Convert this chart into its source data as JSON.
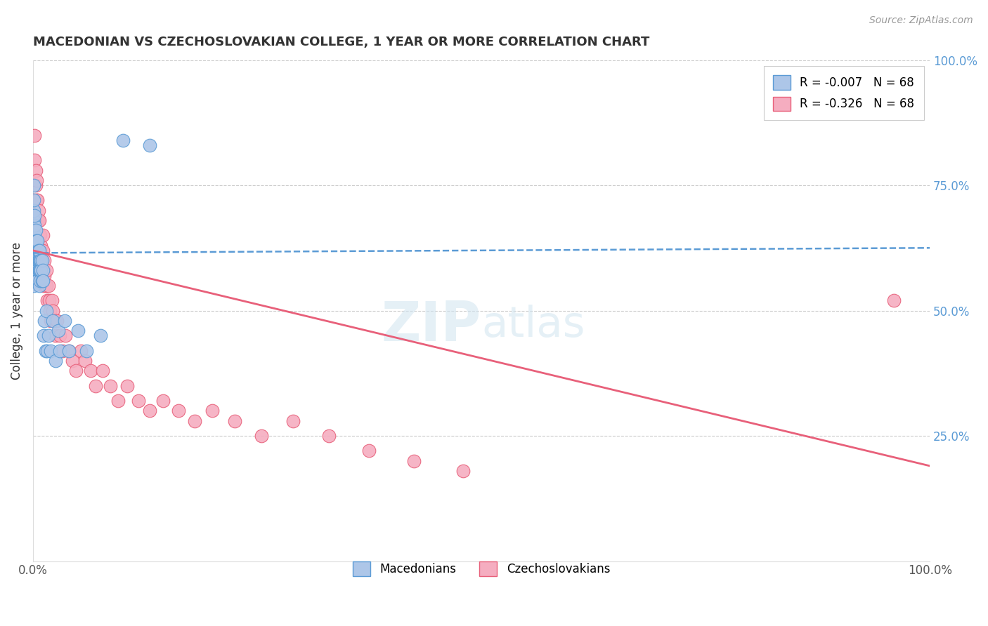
{
  "title": "MACEDONIAN VS CZECHOSLOVAKIAN COLLEGE, 1 YEAR OR MORE CORRELATION CHART",
  "source_text": "Source: ZipAtlas.com",
  "ylabel": "College, 1 year or more",
  "legend_label_1": "R = -0.007   N = 68",
  "legend_label_2": "R = -0.326   N = 68",
  "legend_bottom_1": "Macedonians",
  "legend_bottom_2": "Czechoslovakians",
  "blue_color": "#adc6e8",
  "pink_color": "#f5adc0",
  "blue_line_color": "#5b9bd5",
  "pink_line_color": "#e8607a",
  "grid_color": "#cccccc",
  "background_color": "#ffffff",
  "xlim": [
    0.0,
    1.0
  ],
  "ylim": [
    0.0,
    1.0
  ],
  "macedonian_x": [
    0.001,
    0.001,
    0.001,
    0.001,
    0.001,
    0.001,
    0.001,
    0.001,
    0.001,
    0.001,
    0.001,
    0.002,
    0.002,
    0.002,
    0.002,
    0.002,
    0.002,
    0.002,
    0.003,
    0.003,
    0.003,
    0.003,
    0.003,
    0.003,
    0.004,
    0.004,
    0.004,
    0.004,
    0.004,
    0.005,
    0.005,
    0.005,
    0.005,
    0.005,
    0.006,
    0.006,
    0.006,
    0.007,
    0.007,
    0.007,
    0.007,
    0.008,
    0.008,
    0.008,
    0.009,
    0.009,
    0.01,
    0.01,
    0.011,
    0.011,
    0.012,
    0.013,
    0.014,
    0.015,
    0.016,
    0.017,
    0.02,
    0.022,
    0.025,
    0.028,
    0.03,
    0.035,
    0.04,
    0.05,
    0.06,
    0.075,
    0.1,
    0.13
  ],
  "macedonian_y": [
    0.6,
    0.62,
    0.58,
    0.55,
    0.65,
    0.68,
    0.7,
    0.72,
    0.75,
    0.63,
    0.61,
    0.58,
    0.6,
    0.62,
    0.65,
    0.67,
    0.64,
    0.69,
    0.58,
    0.6,
    0.62,
    0.64,
    0.57,
    0.66,
    0.58,
    0.6,
    0.62,
    0.64,
    0.59,
    0.6,
    0.62,
    0.58,
    0.56,
    0.64,
    0.58,
    0.6,
    0.62,
    0.6,
    0.58,
    0.55,
    0.62,
    0.6,
    0.58,
    0.56,
    0.6,
    0.58,
    0.56,
    0.6,
    0.58,
    0.56,
    0.45,
    0.48,
    0.42,
    0.5,
    0.42,
    0.45,
    0.42,
    0.48,
    0.4,
    0.46,
    0.42,
    0.48,
    0.42,
    0.46,
    0.42,
    0.45,
    0.84,
    0.83
  ],
  "czechoslovakian_x": [
    0.001,
    0.002,
    0.002,
    0.003,
    0.003,
    0.004,
    0.004,
    0.005,
    0.005,
    0.005,
    0.006,
    0.006,
    0.007,
    0.007,
    0.007,
    0.008,
    0.008,
    0.009,
    0.009,
    0.01,
    0.01,
    0.011,
    0.011,
    0.012,
    0.012,
    0.013,
    0.013,
    0.014,
    0.015,
    0.015,
    0.016,
    0.017,
    0.018,
    0.019,
    0.02,
    0.021,
    0.022,
    0.024,
    0.025,
    0.027,
    0.03,
    0.033,
    0.036,
    0.04,
    0.044,
    0.048,
    0.053,
    0.058,
    0.064,
    0.07,
    0.078,
    0.086,
    0.095,
    0.105,
    0.118,
    0.13,
    0.145,
    0.162,
    0.18,
    0.2,
    0.225,
    0.255,
    0.29,
    0.33,
    0.375,
    0.425,
    0.48,
    0.96
  ],
  "czechoslovakian_y": [
    0.72,
    0.8,
    0.85,
    0.75,
    0.78,
    0.72,
    0.76,
    0.68,
    0.72,
    0.65,
    0.68,
    0.7,
    0.65,
    0.62,
    0.68,
    0.62,
    0.65,
    0.6,
    0.63,
    0.6,
    0.58,
    0.62,
    0.65,
    0.58,
    0.55,
    0.6,
    0.57,
    0.55,
    0.58,
    0.55,
    0.52,
    0.55,
    0.52,
    0.5,
    0.48,
    0.52,
    0.5,
    0.48,
    0.45,
    0.48,
    0.45,
    0.42,
    0.45,
    0.42,
    0.4,
    0.38,
    0.42,
    0.4,
    0.38,
    0.35,
    0.38,
    0.35,
    0.32,
    0.35,
    0.32,
    0.3,
    0.32,
    0.3,
    0.28,
    0.3,
    0.28,
    0.25,
    0.28,
    0.25,
    0.22,
    0.2,
    0.18,
    0.52
  ],
  "blue_line_x0": 0.0,
  "blue_line_x1": 1.0,
  "blue_line_y0": 0.615,
  "blue_line_y1": 0.625,
  "pink_line_x0": 0.0,
  "pink_line_x1": 1.0,
  "pink_line_y0": 0.62,
  "pink_line_y1": 0.19
}
